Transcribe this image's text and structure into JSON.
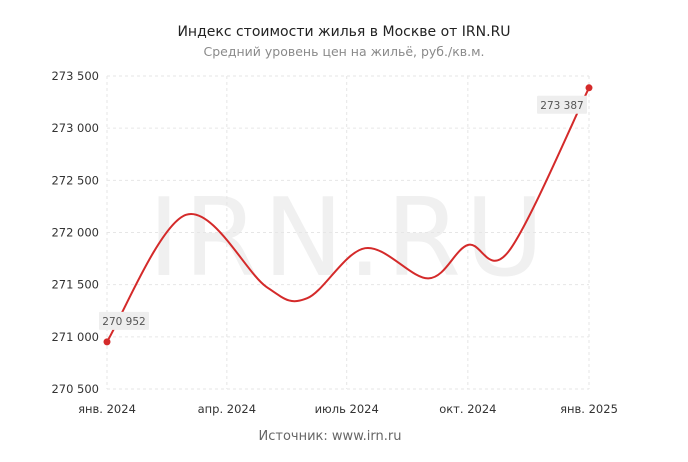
{
  "chart_data": {
    "type": "line",
    "title": "Индекс стоимости жилья в Москве от IRN.RU",
    "subtitle": "Средний уровень цен на жильё, руб./кв.м.",
    "source": "Источник: www.irn.ru",
    "watermark": "IRN.RU",
    "xlabel": "",
    "ylabel": "",
    "ylim": [
      270500,
      273500
    ],
    "yticks": [
      270500,
      271000,
      271500,
      272000,
      272500,
      273000,
      273500
    ],
    "ytick_labels": [
      "270 500",
      "271 000",
      "271 500",
      "272 000",
      "272 500",
      "273 000",
      "273 500"
    ],
    "xlim": [
      "2024-01-01",
      "2025-01-01"
    ],
    "xticks": [
      "2024-01-01",
      "2024-04-01",
      "2024-07-01",
      "2024-10-01",
      "2025-01-01"
    ],
    "xtick_labels": [
      "янв. 2024",
      "апр. 2024",
      "июль 2024",
      "окт. 2024",
      "янв. 2025"
    ],
    "grid": true,
    "series": [
      {
        "color": "#d42a2a",
        "x": [
          "2024-01-01",
          "2024-03-01",
          "2024-05-01",
          "2024-06-01",
          "2024-07-15",
          "2024-09-01",
          "2024-10-01",
          "2024-11-01",
          "2025-01-01"
        ],
        "y": [
          270952,
          272170,
          271480,
          271370,
          271850,
          271560,
          271880,
          271820,
          273387
        ]
      }
    ],
    "annotations": [
      {
        "x": "2024-01-01",
        "y": 270952,
        "text": "270 952"
      },
      {
        "x": "2025-01-01",
        "y": 273387,
        "text": "273 387"
      }
    ]
  }
}
